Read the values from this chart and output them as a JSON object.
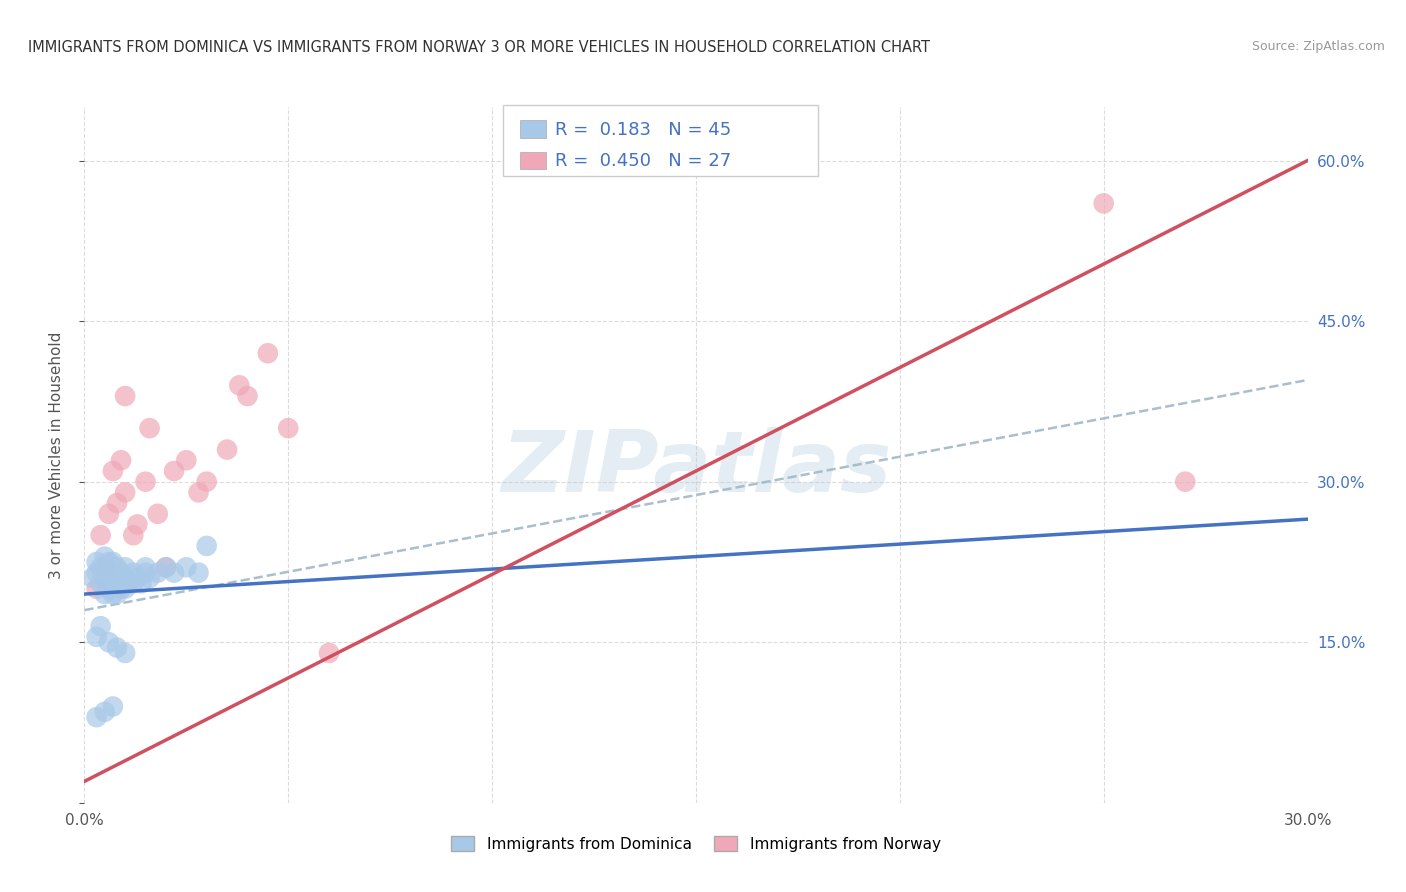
{
  "title": "IMMIGRANTS FROM DOMINICA VS IMMIGRANTS FROM NORWAY 3 OR MORE VEHICLES IN HOUSEHOLD CORRELATION CHART",
  "source": "Source: ZipAtlas.com",
  "ylabel": "3 or more Vehicles in Household",
  "x_min": 0.0,
  "x_max": 0.3,
  "y_min": 0.0,
  "y_max": 0.65,
  "x_ticks": [
    0.0,
    0.05,
    0.1,
    0.15,
    0.2,
    0.25,
    0.3
  ],
  "x_tick_labels": [
    "0.0%",
    "",
    "",
    "",
    "",
    "",
    "30.0%"
  ],
  "y_ticks": [
    0.0,
    0.15,
    0.3,
    0.45,
    0.6
  ],
  "y_tick_labels_right": [
    "",
    "15.0%",
    "30.0%",
    "45.0%",
    "60.0%"
  ],
  "dominica_color": "#a8c8e8",
  "norway_color": "#f0a8b8",
  "dominica_R": 0.183,
  "dominica_N": 45,
  "norway_R": 0.45,
  "norway_N": 27,
  "trend_blue": "#4472c4",
  "trend_pink": "#d05060",
  "trend_dashed_color": "#a0b8c8",
  "watermark_color": "#c8dce8",
  "legend_labels": [
    "Immigrants from Dominica",
    "Immigrants from Norway"
  ],
  "dominica_x": [
    0.002,
    0.003,
    0.003,
    0.004,
    0.004,
    0.005,
    0.005,
    0.005,
    0.006,
    0.006,
    0.006,
    0.007,
    0.007,
    0.007,
    0.008,
    0.008,
    0.008,
    0.008,
    0.009,
    0.009,
    0.01,
    0.01,
    0.01,
    0.011,
    0.012,
    0.012,
    0.013,
    0.014,
    0.015,
    0.015,
    0.016,
    0.018,
    0.02,
    0.022,
    0.025,
    0.028,
    0.03,
    0.003,
    0.004,
    0.006,
    0.008,
    0.01,
    0.003,
    0.005,
    0.007
  ],
  "dominica_y": [
    0.21,
    0.215,
    0.225,
    0.205,
    0.22,
    0.195,
    0.21,
    0.23,
    0.2,
    0.215,
    0.225,
    0.195,
    0.21,
    0.225,
    0.195,
    0.205,
    0.21,
    0.22,
    0.2,
    0.215,
    0.2,
    0.21,
    0.22,
    0.205,
    0.205,
    0.215,
    0.21,
    0.205,
    0.215,
    0.22,
    0.21,
    0.215,
    0.22,
    0.215,
    0.22,
    0.215,
    0.24,
    0.155,
    0.165,
    0.15,
    0.145,
    0.14,
    0.08,
    0.085,
    0.09
  ],
  "norway_x": [
    0.003,
    0.004,
    0.005,
    0.006,
    0.007,
    0.008,
    0.009,
    0.01,
    0.01,
    0.012,
    0.013,
    0.015,
    0.016,
    0.018,
    0.02,
    0.022,
    0.025,
    0.028,
    0.03,
    0.035,
    0.038,
    0.04,
    0.045,
    0.05,
    0.06,
    0.25,
    0.27
  ],
  "norway_y": [
    0.2,
    0.25,
    0.22,
    0.27,
    0.31,
    0.28,
    0.32,
    0.29,
    0.38,
    0.25,
    0.26,
    0.3,
    0.35,
    0.27,
    0.22,
    0.31,
    0.32,
    0.29,
    0.3,
    0.33,
    0.39,
    0.38,
    0.42,
    0.35,
    0.14,
    0.56,
    0.3
  ],
  "trend_blue_y0": 0.195,
  "trend_blue_y1": 0.265,
  "trend_pink_y0": 0.02,
  "trend_pink_y1": 0.6,
  "trend_dash_y0": 0.18,
  "trend_dash_y1": 0.395
}
